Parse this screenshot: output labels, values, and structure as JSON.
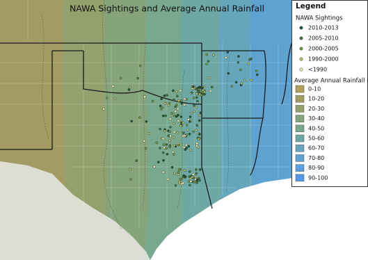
{
  "map": {
    "title": "NAWA Sightings and Average Annual Rainfall",
    "legend": {
      "title": "Legend",
      "sightings": {
        "title": "NAWA Sightings",
        "items": [
          {
            "label": "2010-2013",
            "color": "#1f5a2a"
          },
          {
            "label": "2005-2010",
            "color": "#3d7a3a"
          },
          {
            "label": "2000-2005",
            "color": "#6f9a48"
          },
          {
            "label": "1990-2000",
            "color": "#b8c86a"
          },
          {
            "label": "<1990",
            "color": "#f2f0b0"
          }
        ]
      },
      "rainfall": {
        "title": "Average Annual Rainfall (in)",
        "items": [
          {
            "label": "0-10",
            "color": "#b2a060"
          },
          {
            "label": "10-20",
            "color": "#a29c64"
          },
          {
            "label": "20-30",
            "color": "#94a06e"
          },
          {
            "label": "30-40",
            "color": "#86a47c"
          },
          {
            "label": "40-50",
            "color": "#78a88e"
          },
          {
            "label": "50-60",
            "color": "#6ea8a4"
          },
          {
            "label": "60-70",
            "color": "#66a6bc"
          },
          {
            "label": "70-80",
            "color": "#5fa2d0"
          },
          {
            "label": "80-90",
            "color": "#599edf"
          },
          {
            "label": "90-100",
            "color": "#5399e8"
          }
        ]
      }
    }
  }
}
